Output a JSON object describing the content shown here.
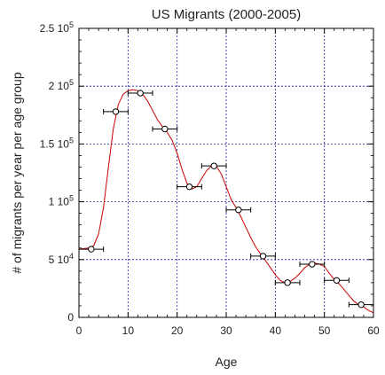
{
  "chart_data": {
    "type": "scatter",
    "title": "US Migrants (2000-2005)",
    "xlabel": "Age",
    "ylabel": "# of migrants per year per age group",
    "xlim": [
      0,
      60
    ],
    "ylim": [
      0,
      250000
    ],
    "x_ticks": [
      0,
      10,
      20,
      30,
      40,
      50,
      60
    ],
    "y_ticks": [
      {
        "value": 0,
        "mantissa": "0",
        "exponent": ""
      },
      {
        "value": 50000,
        "mantissa": "5 10",
        "exponent": "4"
      },
      {
        "value": 100000,
        "mantissa": "1 10",
        "exponent": "5"
      },
      {
        "value": 150000,
        "mantissa": "1.5 10",
        "exponent": "5"
      },
      {
        "value": 200000,
        "mantissa": "2 10",
        "exponent": "5"
      },
      {
        "value": 250000,
        "mantissa": "2.5 10",
        "exponent": "5"
      }
    ],
    "grid": true,
    "colors": {
      "points": "#000000",
      "curve": "#cc0000",
      "grid": "#1a1a99"
    },
    "x_error_half_width": 2.5,
    "points": [
      {
        "x": 2.5,
        "y": 59000
      },
      {
        "x": 7.5,
        "y": 178000
      },
      {
        "x": 12.5,
        "y": 194000
      },
      {
        "x": 17.5,
        "y": 163000
      },
      {
        "x": 22.5,
        "y": 113000
      },
      {
        "x": 27.5,
        "y": 131000
      },
      {
        "x": 32.5,
        "y": 93000
      },
      {
        "x": 37.5,
        "y": 53000
      },
      {
        "x": 42.5,
        "y": 30000
      },
      {
        "x": 47.5,
        "y": 46000
      },
      {
        "x": 52.5,
        "y": 32000
      },
      {
        "x": 57.5,
        "y": 11000
      }
    ],
    "curve": [
      [
        0,
        59000
      ],
      [
        1,
        59500
      ],
      [
        2,
        60000
      ],
      [
        3,
        62000
      ],
      [
        4,
        72000
      ],
      [
        5,
        95000
      ],
      [
        6,
        130000
      ],
      [
        7,
        163000
      ],
      [
        8,
        184000
      ],
      [
        9,
        193000
      ],
      [
        10,
        196000
      ],
      [
        11,
        197000
      ],
      [
        12,
        196000
      ],
      [
        13,
        193000
      ],
      [
        14,
        187000
      ],
      [
        15,
        179000
      ],
      [
        16,
        171000
      ],
      [
        17,
        165000
      ],
      [
        18,
        160000
      ],
      [
        19,
        153000
      ],
      [
        20,
        142000
      ],
      [
        21,
        128000
      ],
      [
        22,
        116000
      ],
      [
        23,
        111000
      ],
      [
        24,
        113000
      ],
      [
        25,
        120000
      ],
      [
        26,
        127000
      ],
      [
        27,
        131000
      ],
      [
        28,
        131000
      ],
      [
        29,
        124000
      ],
      [
        30,
        113000
      ],
      [
        31,
        102000
      ],
      [
        32,
        95000
      ],
      [
        33,
        87000
      ],
      [
        34,
        78000
      ],
      [
        35,
        69000
      ],
      [
        36,
        61000
      ],
      [
        37,
        55000
      ],
      [
        38,
        49000
      ],
      [
        39,
        43000
      ],
      [
        40,
        37000
      ],
      [
        41,
        32000
      ],
      [
        42,
        30000
      ],
      [
        43,
        31000
      ],
      [
        44,
        34000
      ],
      [
        45,
        38000
      ],
      [
        46,
        43000
      ],
      [
        47,
        46000
      ],
      [
        48,
        47000
      ],
      [
        49,
        46000
      ],
      [
        50,
        44000
      ],
      [
        51,
        38000
      ],
      [
        52,
        33000
      ],
      [
        53,
        29000
      ],
      [
        54,
        24000
      ],
      [
        55,
        19000
      ],
      [
        56,
        14000
      ],
      [
        57,
        11000
      ],
      [
        58,
        9000
      ],
      [
        59,
        6000
      ],
      [
        60,
        4000
      ]
    ]
  }
}
